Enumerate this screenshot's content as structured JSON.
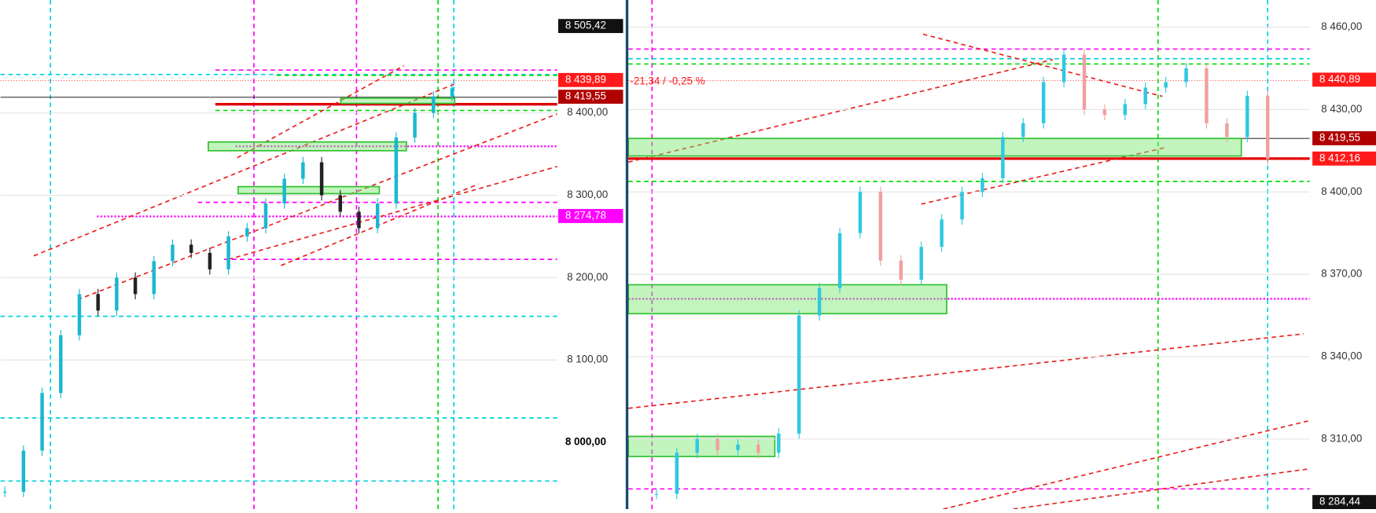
{
  "left_panel": {
    "ylim": [
      7919,
      8537
    ],
    "yticks": [
      {
        "value": 8400,
        "label": "8 400,00"
      },
      {
        "value": 8300,
        "label": "8 300,00"
      },
      {
        "value": 8200,
        "label": "8 200,00"
      },
      {
        "value": 8100,
        "label": "8 100,00"
      }
    ],
    "price_tags": [
      {
        "value": 8505.42,
        "label": "8 505,42",
        "color": "#111111"
      },
      {
        "value": 8439.89,
        "label": "8 439,89",
        "color": "#ff1a1a"
      },
      {
        "value": 8419.55,
        "label": "8 419,55",
        "color": "#b00000"
      },
      {
        "value": 8274.78,
        "label": "8 274,78",
        "color": "#ff00ff"
      },
      {
        "value": 8000,
        "label": "8 000,00",
        "color": "#ffffff"
      }
    ],
    "closes": [
      7940,
      7990,
      8060,
      8130,
      8180,
      8160,
      8200,
      8180,
      8220,
      8240,
      8230,
      8210,
      8250,
      8260,
      8290,
      8320,
      8340,
      8300,
      8280,
      8260,
      8290,
      8370,
      8400,
      8420,
      8430
    ]
  },
  "right_panel": {
    "ylim": [
      8284.5,
      8469.9
    ],
    "yticks": [
      {
        "value": 8460,
        "label": "8 460,00"
      },
      {
        "value": 8430,
        "label": "8 430,00"
      },
      {
        "value": 8400,
        "label": "8 400,00"
      },
      {
        "value": 8370,
        "label": "8 370,00"
      },
      {
        "value": 8340,
        "label": "8 340,00"
      },
      {
        "value": 8310,
        "label": "8 310,00"
      }
    ],
    "price_tags": [
      {
        "value": 8440.89,
        "label": "8 440,89",
        "color": "#ff1a1a"
      },
      {
        "value": 8419.55,
        "label": "8 419,55",
        "color": "#b00000"
      },
      {
        "value": 8412.16,
        "label": "8 412,16",
        "color": "#ff1a1a"
      },
      {
        "value": 8284.44,
        "label": "8 284,44",
        "color": "#111111"
      }
    ],
    "change_label": "-21,34 / -0,25 %",
    "closes": [
      8290,
      8305,
      8310,
      8306,
      8308,
      8305,
      8312,
      8355,
      8365,
      8385,
      8400,
      8375,
      8368,
      8380,
      8390,
      8400,
      8405,
      8420,
      8425,
      8440,
      8450,
      8430,
      8428,
      8432,
      8438,
      8440,
      8445,
      8425,
      8420,
      8435,
      8412
    ]
  }
}
